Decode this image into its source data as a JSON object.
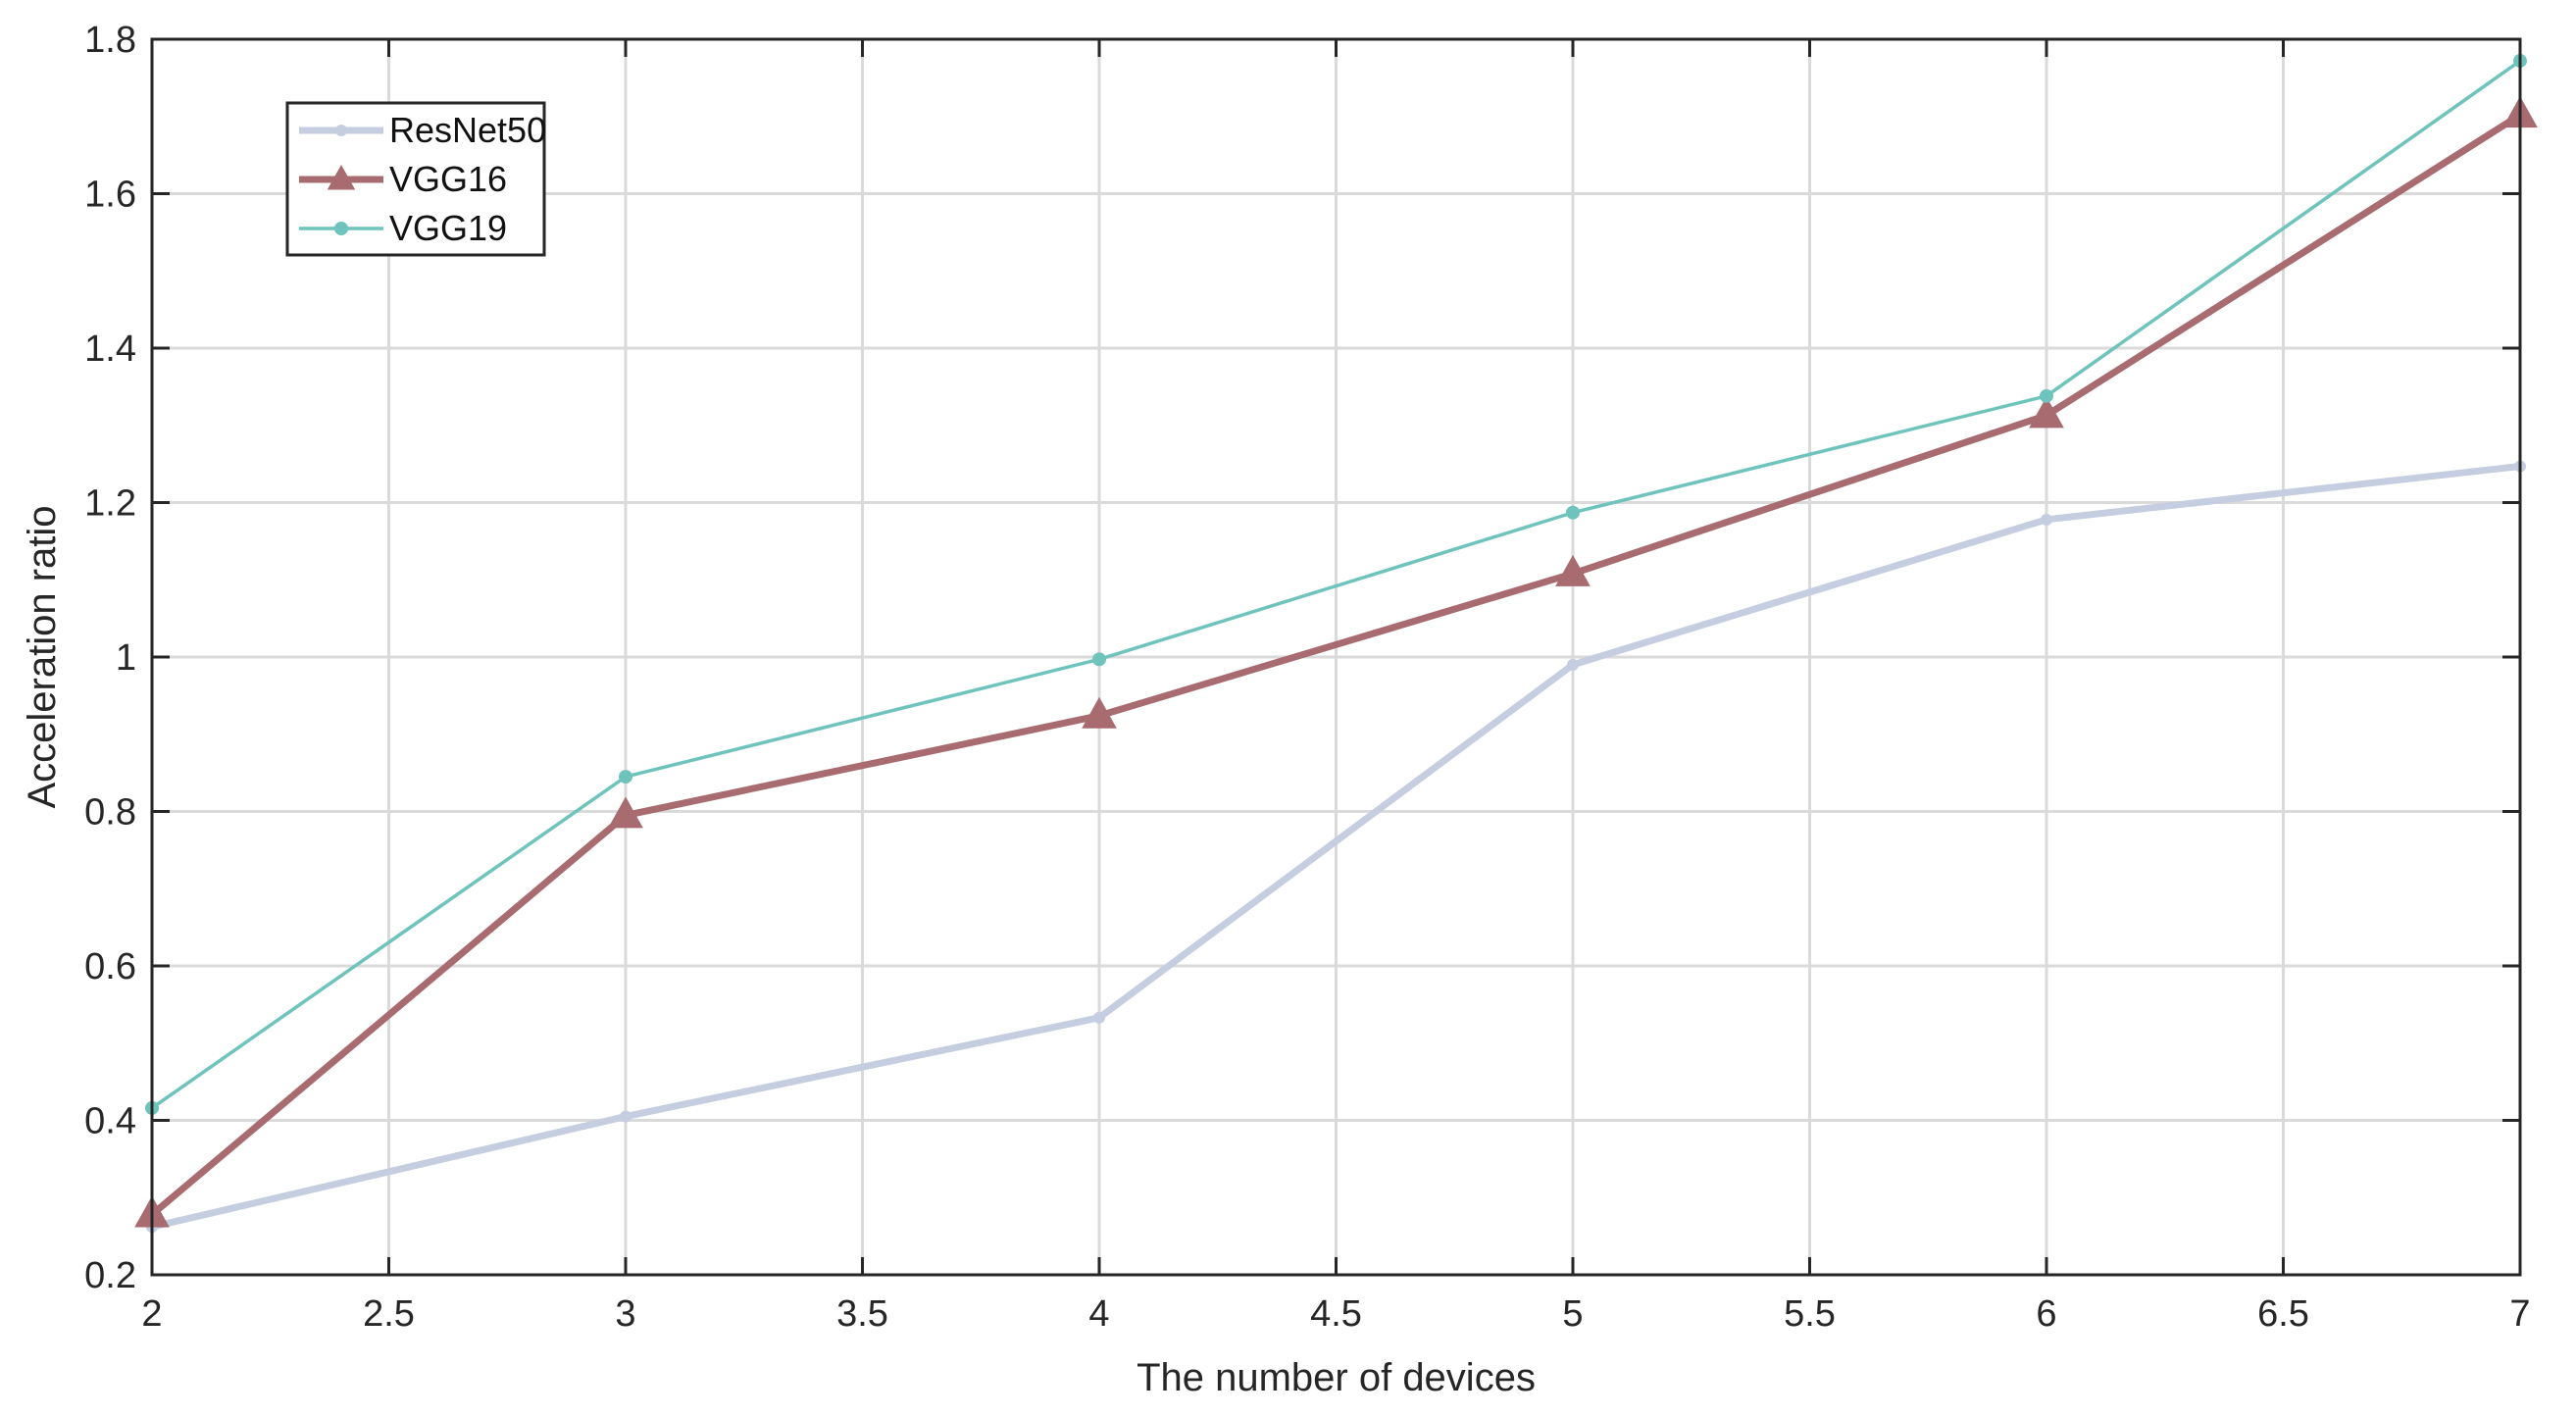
{
  "chart_data": {
    "type": "line",
    "title": "",
    "xlabel": "The number of devices",
    "ylabel": "Acceleration ratio",
    "xlim": [
      2,
      7
    ],
    "ylim": [
      0.2,
      1.8
    ],
    "x_ticks": [
      "2",
      "2.5",
      "3",
      "3.5",
      "4",
      "4.5",
      "5",
      "5.5",
      "6",
      "6.5",
      "7"
    ],
    "y_ticks": [
      "0.2",
      "0.4",
      "0.6",
      "0.8",
      "1",
      "1.2",
      "1.4",
      "1.6",
      "1.8"
    ],
    "x": [
      2,
      3,
      4,
      5,
      6,
      7
    ],
    "grid": true,
    "legend_position": "top-left",
    "series": [
      {
        "name": "ResNet50",
        "values": [
          0.262,
          0.405,
          0.533,
          0.99,
          1.178,
          1.247
        ],
        "color": "#c5cde0",
        "marker": "circle"
      },
      {
        "name": "VGG16",
        "values": [
          0.278,
          0.795,
          0.924,
          1.108,
          1.313,
          1.702
        ],
        "color": "#a86b70",
        "marker": "triangle"
      },
      {
        "name": "VGG19",
        "values": [
          0.416,
          0.845,
          0.997,
          1.187,
          1.338,
          1.772
        ],
        "color": "#6ec4bc",
        "marker": "circle"
      }
    ]
  }
}
